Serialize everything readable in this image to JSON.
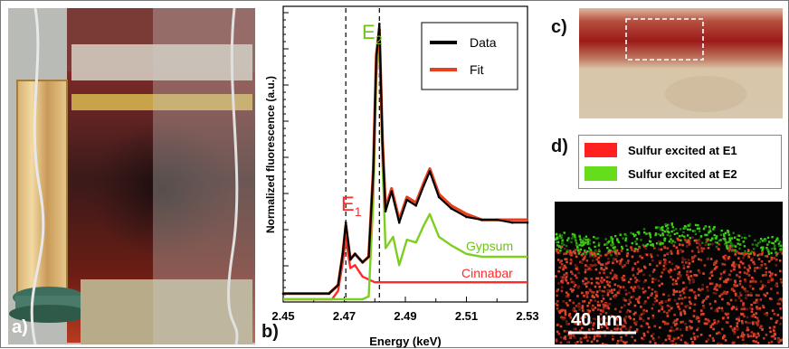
{
  "panels": {
    "a": {
      "label": "a)"
    },
    "b": {
      "label": "b)"
    },
    "c": {
      "label": "c)"
    },
    "d": {
      "label": "d)"
    }
  },
  "chart_data": {
    "type": "line",
    "xlabel": "Energy (keV)",
    "ylabel": "Normalized fluorescence (a.u.)",
    "xlim": [
      2.45,
      2.53
    ],
    "ylim": [
      0,
      1.0
    ],
    "xticks": [
      "2.45",
      "2.47",
      "2.49",
      "2.51",
      "2.53"
    ],
    "legend": {
      "placement": "top-right",
      "entries": [
        "Data",
        "Fit"
      ]
    },
    "annotations": {
      "e1": "E",
      "e1_sub": "1",
      "e2": "E",
      "e2_sub": "2",
      "gypsum": "Gypsum",
      "cinnabar": "Cinnabar"
    },
    "vlines_keV": [
      2.4705,
      2.4815
    ],
    "series": [
      {
        "name": "Data",
        "color": "#000000",
        "x": [
          2.45,
          2.465,
          2.468,
          2.4695,
          2.4705,
          2.472,
          2.4735,
          2.476,
          2.478,
          2.4795,
          2.4805,
          2.4815,
          2.4825,
          2.4835,
          2.4855,
          2.488,
          2.4905,
          2.4935,
          2.496,
          2.498,
          2.501,
          2.505,
          2.51,
          2.515,
          2.52,
          2.525,
          2.53
        ],
        "y": [
          0.02,
          0.02,
          0.05,
          0.16,
          0.27,
          0.14,
          0.16,
          0.13,
          0.15,
          0.45,
          0.85,
          0.97,
          0.55,
          0.31,
          0.38,
          0.27,
          0.35,
          0.33,
          0.4,
          0.45,
          0.36,
          0.32,
          0.29,
          0.28,
          0.28,
          0.27,
          0.27
        ]
      },
      {
        "name": "Fit",
        "color": "#e8401c",
        "x": [
          2.45,
          2.465,
          2.468,
          2.4695,
          2.4705,
          2.472,
          2.4735,
          2.476,
          2.478,
          2.4795,
          2.4805,
          2.4815,
          2.4825,
          2.4835,
          2.4855,
          2.488,
          2.4905,
          2.4935,
          2.496,
          2.498,
          2.501,
          2.505,
          2.51,
          2.515,
          2.52,
          2.525,
          2.53
        ],
        "y": [
          0.02,
          0.02,
          0.05,
          0.16,
          0.26,
          0.14,
          0.16,
          0.13,
          0.15,
          0.46,
          0.86,
          0.95,
          0.56,
          0.32,
          0.39,
          0.28,
          0.36,
          0.34,
          0.41,
          0.46,
          0.37,
          0.33,
          0.3,
          0.28,
          0.28,
          0.28,
          0.28
        ]
      },
      {
        "name": "Gypsum",
        "color": "#7ccf1e",
        "x": [
          2.45,
          2.476,
          2.478,
          2.4795,
          2.4805,
          2.4815,
          2.4825,
          2.4835,
          2.486,
          2.488,
          2.4905,
          2.4935,
          2.496,
          2.498,
          2.501,
          2.505,
          2.51,
          2.515,
          2.52,
          2.525,
          2.53
        ],
        "y": [
          0.0,
          0.0,
          0.01,
          0.35,
          0.78,
          0.93,
          0.48,
          0.18,
          0.22,
          0.12,
          0.21,
          0.2,
          0.26,
          0.3,
          0.22,
          0.19,
          0.16,
          0.15,
          0.15,
          0.15,
          0.15
        ]
      },
      {
        "name": "Cinnabar",
        "color": "#ff2a2a",
        "x": [
          2.45,
          2.466,
          2.468,
          2.4695,
          2.4705,
          2.472,
          2.4735,
          2.476,
          2.48,
          2.485,
          2.49,
          2.5,
          2.51,
          2.52,
          2.53
        ],
        "y": [
          0.0,
          0.0,
          0.03,
          0.13,
          0.21,
          0.11,
          0.12,
          0.08,
          0.06,
          0.06,
          0.06,
          0.06,
          0.06,
          0.06,
          0.06
        ]
      }
    ]
  },
  "panel_c": {
    "title": "c)"
  },
  "panel_d": {
    "legend": [
      "Sulfur excited at E1",
      "Sulfur excited at E2"
    ],
    "legend_colors": [
      "#ff2020",
      "#66dd1a"
    ],
    "scalebar": "40 µm"
  }
}
